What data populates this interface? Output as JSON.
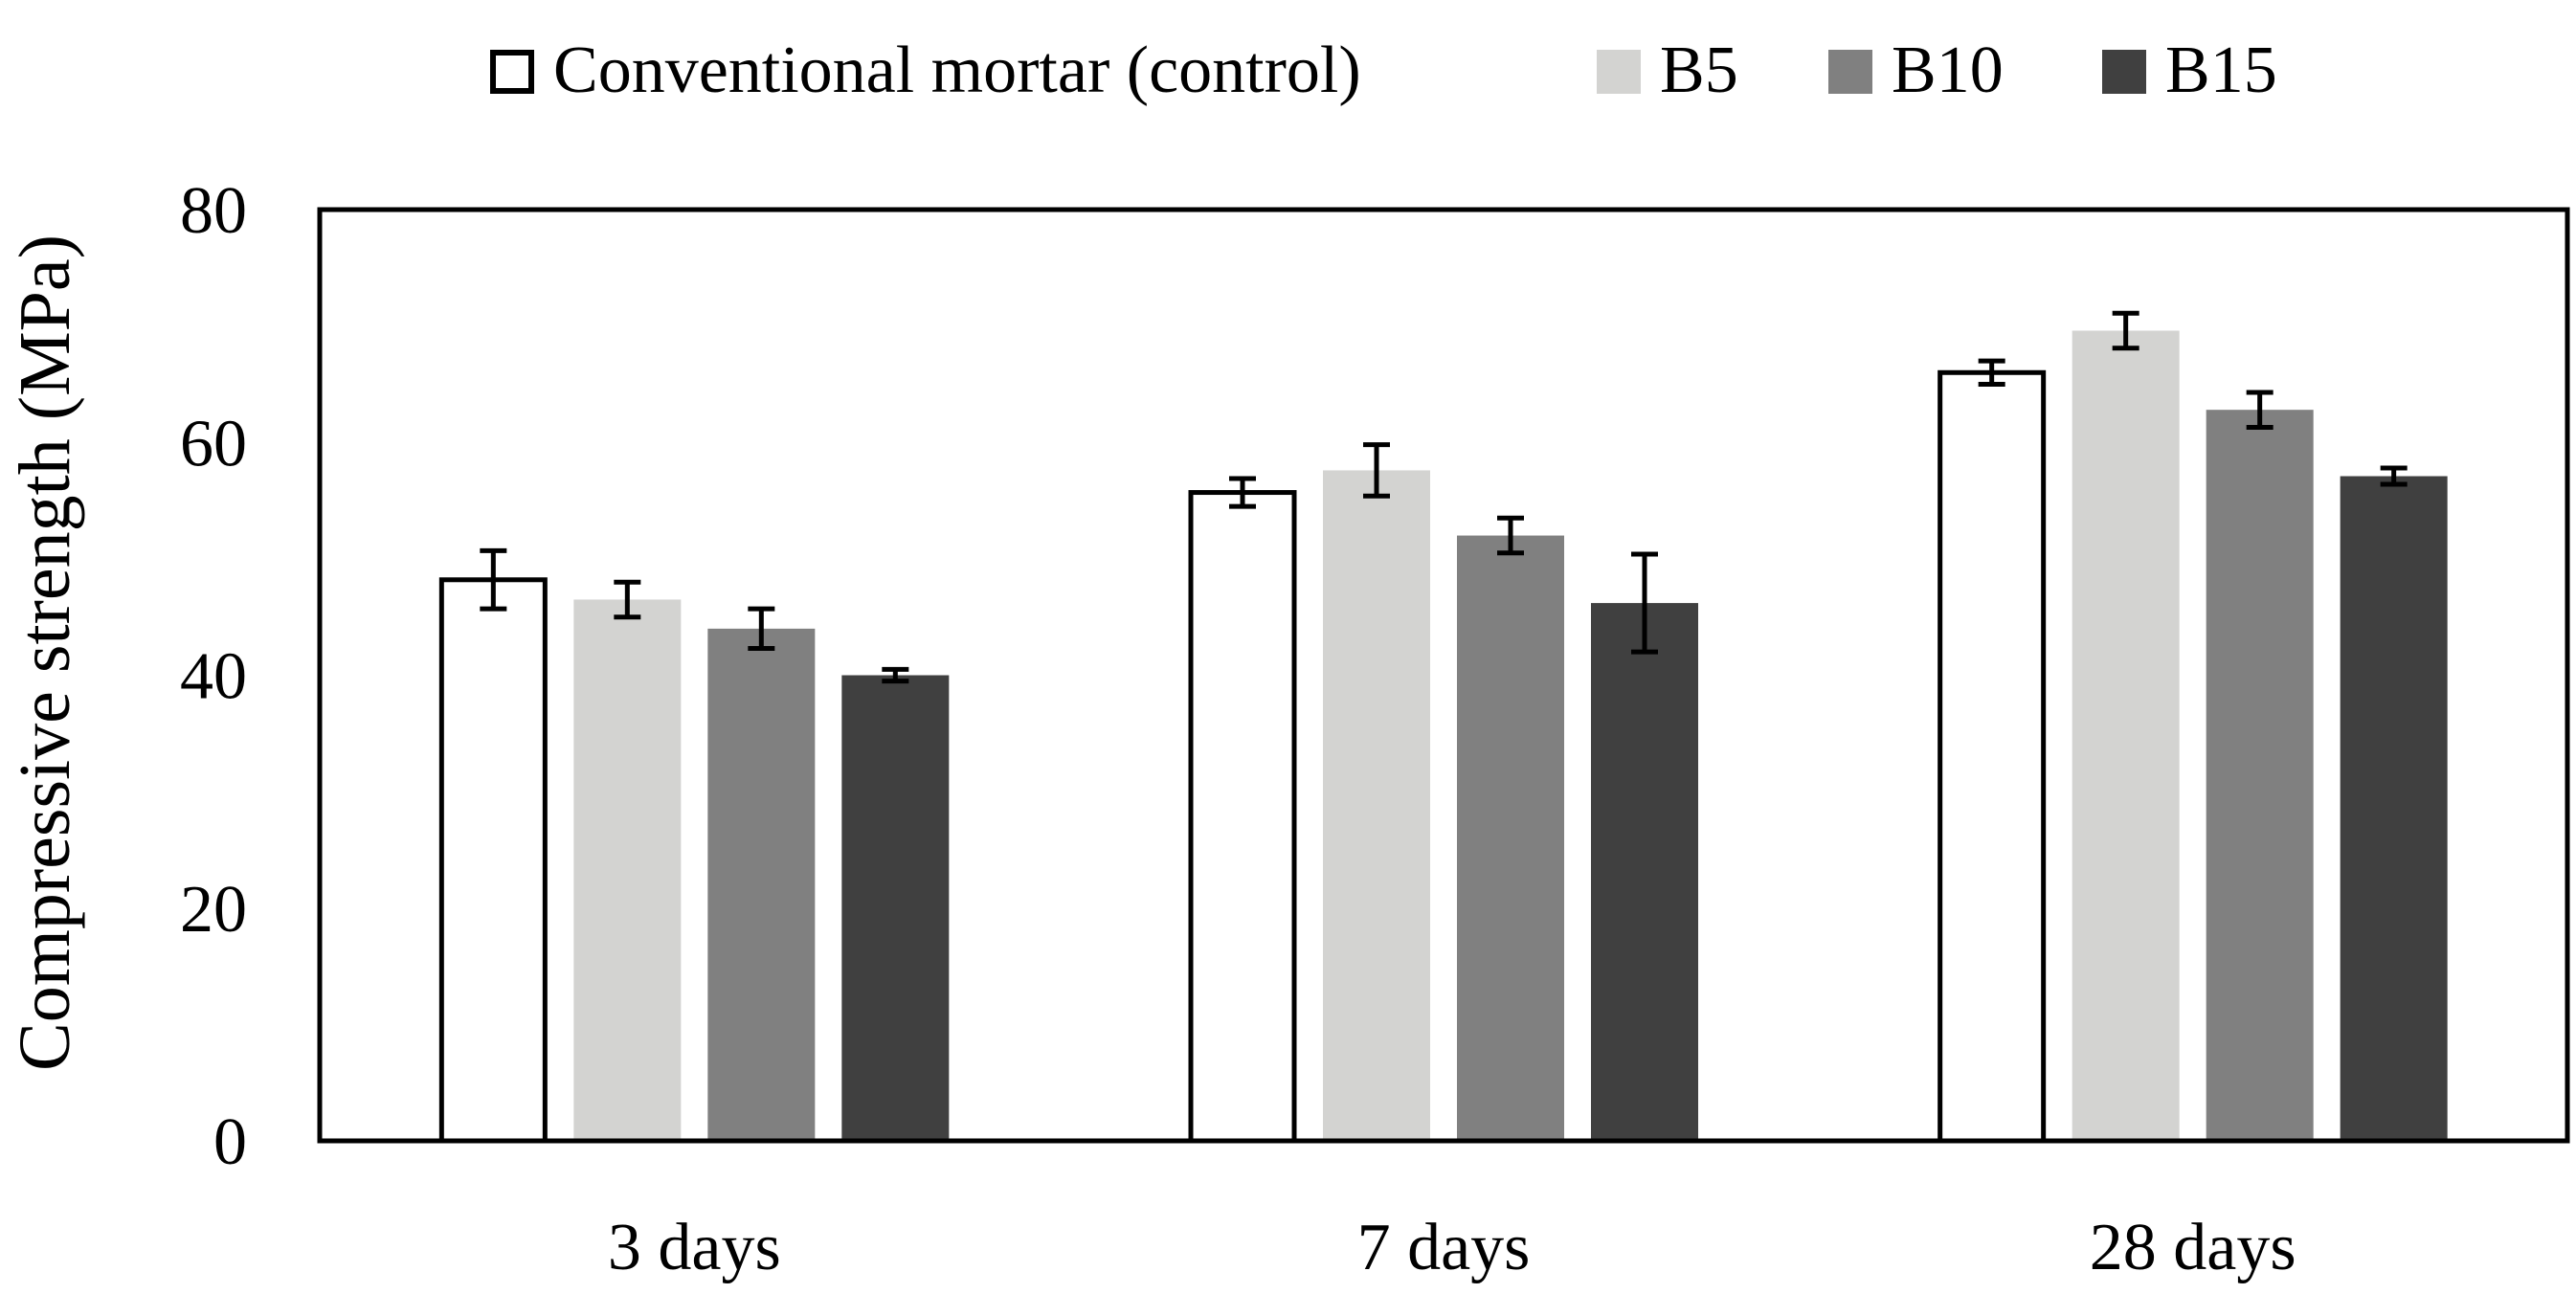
{
  "chart_data": {
    "type": "bar",
    "title": "",
    "xlabel": "",
    "ylabel": "Compressive strength (MPa)",
    "ylim": [
      0,
      80
    ],
    "yticks": [
      0,
      20,
      40,
      60,
      80
    ],
    "grid": false,
    "legend_position": "top",
    "categories": [
      "3 days",
      "7 days",
      "28 days"
    ],
    "series": [
      {
        "name": "Conventional mortar (control)",
        "color": "#ffffff",
        "stroke": "#000000",
        "values": [
          48.2,
          55.7,
          66.0
        ],
        "errors": [
          2.5,
          1.2,
          1.0
        ]
      },
      {
        "name": "B5",
        "color": "#d3d3d1",
        "stroke": "none",
        "values": [
          46.5,
          57.6,
          69.6
        ],
        "errors": [
          1.5,
          2.2,
          1.5
        ]
      },
      {
        "name": "B10",
        "color": "#808080",
        "stroke": "none",
        "values": [
          44.0,
          52.0,
          62.8
        ],
        "errors": [
          1.7,
          1.5,
          1.5
        ]
      },
      {
        "name": "B15",
        "color": "#404040",
        "stroke": "none",
        "values": [
          40.0,
          46.2,
          57.1
        ],
        "errors": [
          0.5,
          4.2,
          0.7
        ]
      }
    ]
  }
}
